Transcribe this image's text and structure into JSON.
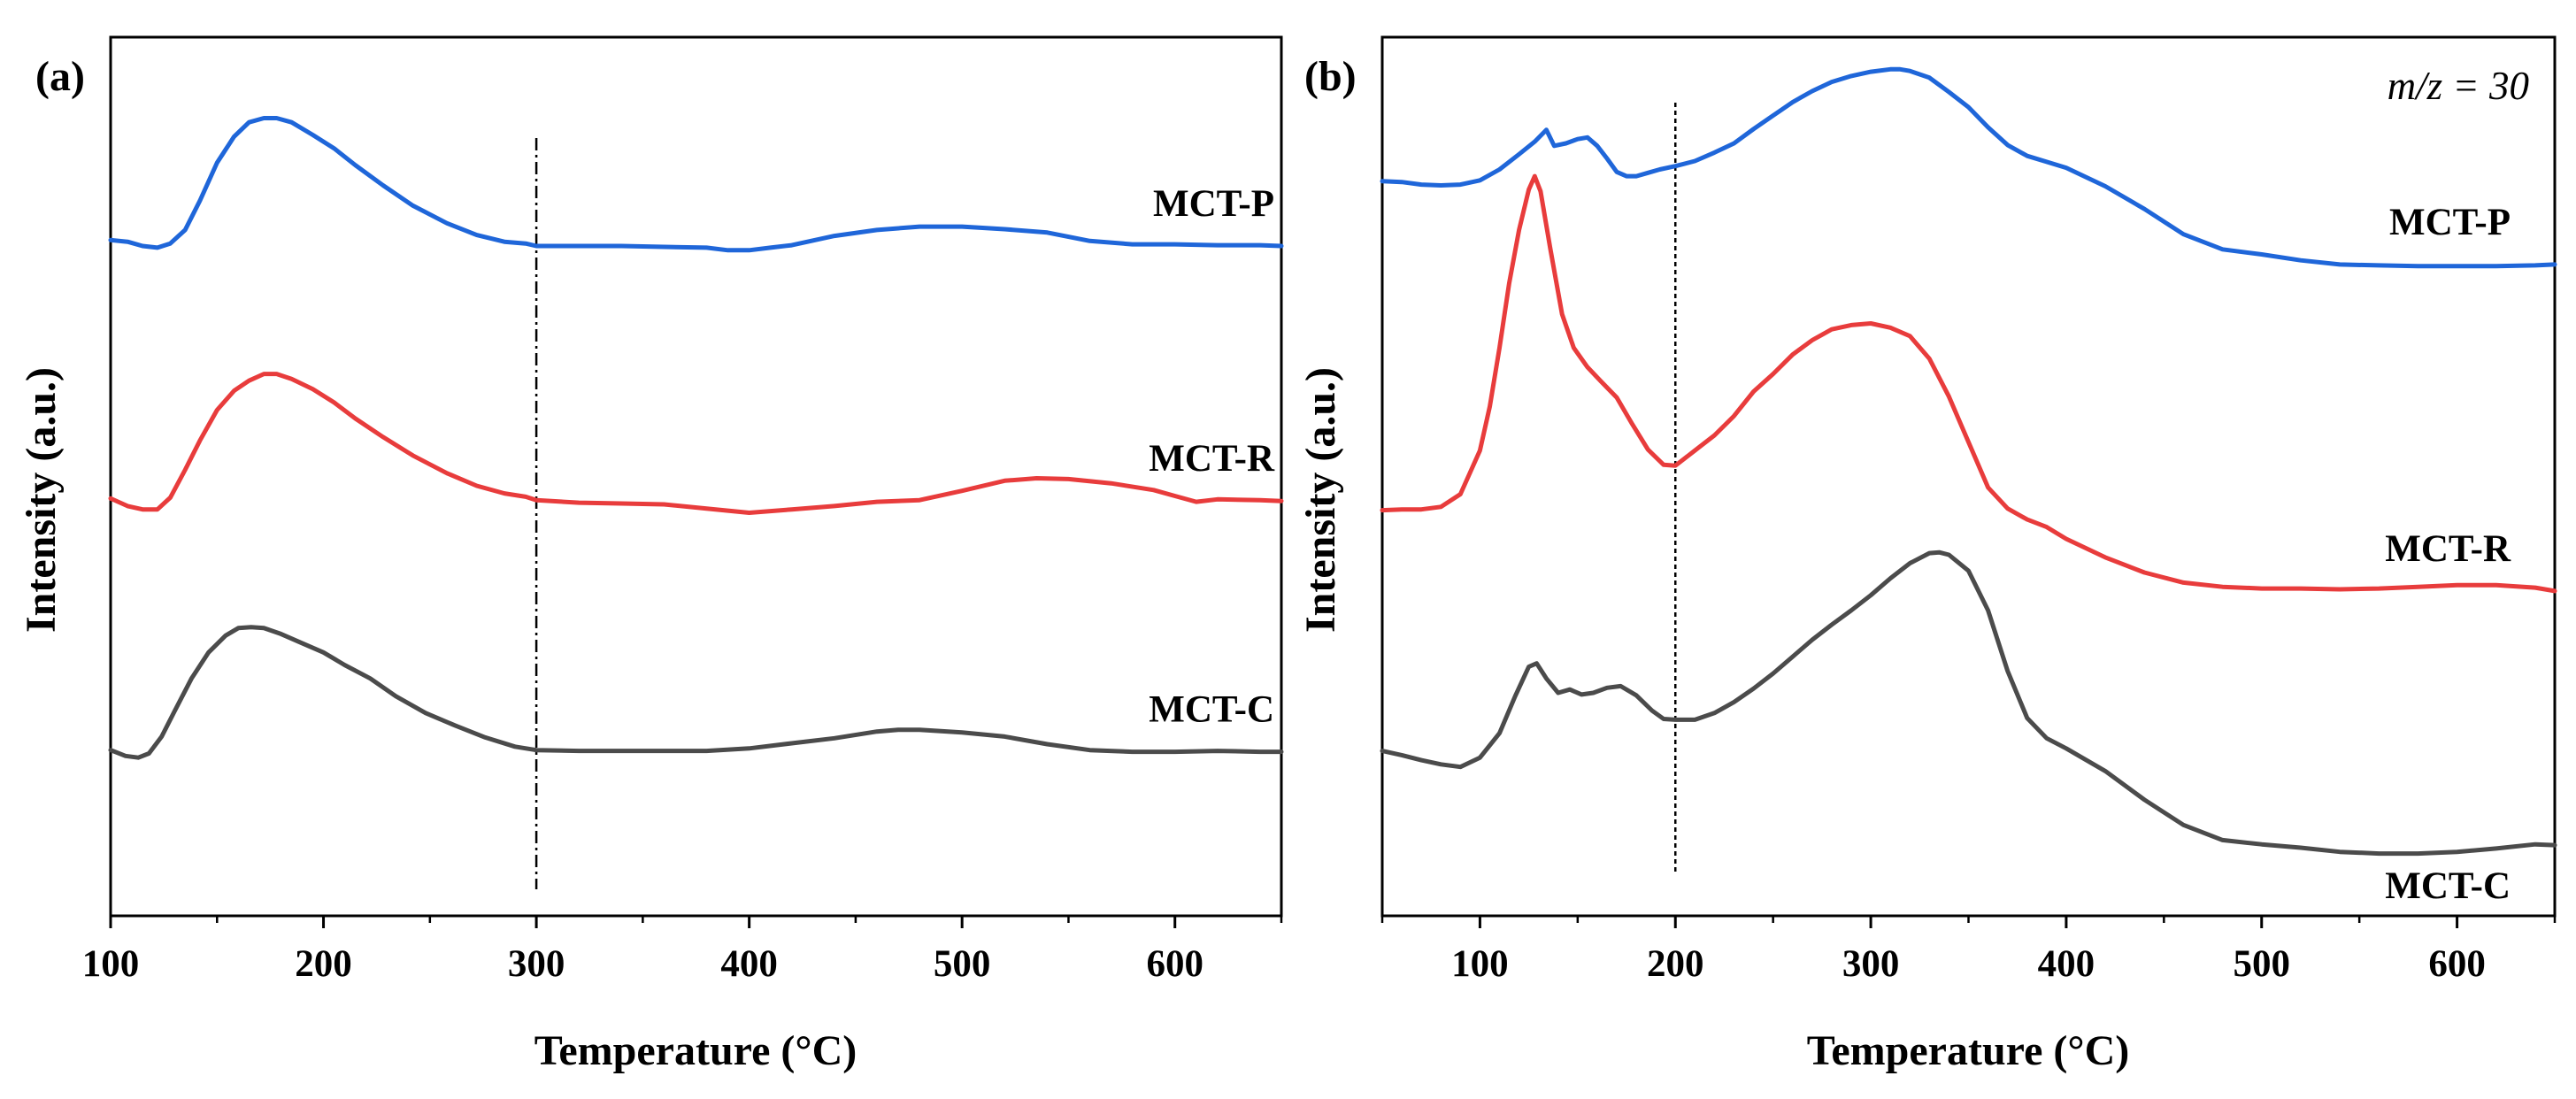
{
  "chart_data": [
    {
      "panel_label": "(a)",
      "type": "line",
      "xlabel": "Temperature (°C)",
      "ylabel": "Intensity (a.u.)",
      "xlim": [
        100,
        650
      ],
      "ylim": [
        0,
        100
      ],
      "xticks": [
        "100",
        "200",
        "300",
        "400",
        "500",
        "600"
      ],
      "xtick_values": [
        100,
        200,
        300,
        400,
        500,
        600
      ],
      "reference_line_x": 300,
      "annotation": "",
      "series": [
        {
          "name": "MCT-P",
          "color": "#1f66d9",
          "x": [
            100,
            108,
            115,
            122,
            128,
            135,
            142,
            150,
            158,
            165,
            172,
            178,
            185,
            195,
            205,
            215,
            228,
            242,
            258,
            272,
            285,
            295,
            300,
            320,
            340,
            360,
            380,
            390,
            400,
            410,
            420,
            440,
            460,
            480,
            500,
            520,
            540,
            560,
            580,
            600,
            620,
            640,
            650
          ],
          "values": [
            80.3,
            80.1,
            79.6,
            79.4,
            79.9,
            81.5,
            85,
            89.5,
            92.6,
            94.3,
            94.8,
            94.8,
            94.3,
            92.8,
            91.2,
            89.2,
            86.8,
            84.4,
            82.3,
            80.9,
            80.1,
            79.9,
            79.6,
            79.6,
            79.6,
            79.5,
            79.4,
            79.1,
            79.1,
            79.4,
            79.7,
            80.8,
            81.5,
            81.9,
            81.9,
            81.6,
            81.2,
            80.2,
            79.8,
            79.8,
            79.7,
            79.7,
            79.6
          ]
        },
        {
          "name": "MCT-R",
          "color": "#e83c3c",
          "x": [
            100,
            108,
            115,
            122,
            128,
            135,
            142,
            150,
            158,
            165,
            172,
            178,
            185,
            195,
            205,
            215,
            228,
            242,
            258,
            272,
            285,
            295,
            300,
            320,
            340,
            360,
            380,
            400,
            420,
            440,
            460,
            480,
            500,
            520,
            535,
            550,
            570,
            590,
            600,
            610,
            620,
            640,
            650
          ],
          "values": [
            49.6,
            48.7,
            48.3,
            48.3,
            49.7,
            53,
            56.5,
            60.1,
            62.4,
            63.6,
            64.4,
            64.4,
            63.8,
            62.6,
            61,
            59.1,
            56.9,
            54.7,
            52.6,
            51.1,
            50.2,
            49.8,
            49.4,
            49.1,
            49,
            48.9,
            48.4,
            47.9,
            48.3,
            48.7,
            49.2,
            49.4,
            50.5,
            51.7,
            52,
            51.9,
            51.4,
            50.6,
            49.9,
            49.2,
            49.5,
            49.4,
            49.3
          ]
        },
        {
          "name": "MCT-C",
          "color": "#4b4b4b",
          "x": [
            100,
            107,
            113,
            118,
            124,
            130,
            138,
            146,
            154,
            160,
            166,
            172,
            180,
            190,
            200,
            210,
            222,
            234,
            248,
            262,
            276,
            290,
            300,
            320,
            340,
            360,
            380,
            400,
            420,
            440,
            460,
            470,
            480,
            500,
            520,
            540,
            560,
            580,
            600,
            620,
            640,
            650
          ],
          "values": [
            19.7,
            19,
            18.8,
            19.3,
            21.3,
            24.3,
            28.2,
            31.3,
            33.3,
            34.2,
            34.3,
            34.2,
            33.5,
            32.4,
            31.3,
            29.8,
            28.2,
            26.1,
            24.1,
            22.6,
            21.2,
            20.1,
            19.7,
            19.6,
            19.6,
            19.6,
            19.6,
            19.9,
            20.5,
            21.1,
            21.9,
            22.1,
            22.1,
            21.8,
            21.3,
            20.4,
            19.7,
            19.5,
            19.5,
            19.6,
            19.5,
            19.5
          ]
        }
      ]
    },
    {
      "panel_label": "(b)",
      "type": "line",
      "xlabel": "Temperature (°C)",
      "ylabel": "Intensity (a.u.)",
      "xlim": [
        50,
        650
      ],
      "ylim": [
        0,
        100
      ],
      "xticks": [
        "100",
        "200",
        "300",
        "400",
        "500",
        "600"
      ],
      "xtick_values": [
        100,
        200,
        300,
        400,
        500,
        600
      ],
      "reference_line_x": 200,
      "annotation": "m/z = 30",
      "series": [
        {
          "name": "MCT-P",
          "color": "#1f66d9",
          "x": [
            50,
            60,
            70,
            80,
            90,
            100,
            110,
            120,
            128,
            134,
            138,
            144,
            150,
            155,
            160,
            165,
            170,
            175,
            180,
            186,
            192,
            200,
            210,
            220,
            230,
            240,
            250,
            260,
            270,
            280,
            290,
            300,
            310,
            315,
            320,
            330,
            340,
            350,
            360,
            370,
            380,
            390,
            400,
            420,
            440,
            460,
            480,
            500,
            520,
            540,
            560,
            580,
            600,
            620,
            640,
            650
          ],
          "values": [
            87.3,
            87.2,
            86.9,
            86.8,
            86.9,
            87.4,
            88.7,
            90.5,
            92,
            93.4,
            91.5,
            91.8,
            92.3,
            92.5,
            91.5,
            90,
            88.4,
            87.9,
            87.9,
            88.3,
            88.7,
            89.1,
            89.7,
            90.7,
            91.8,
            93.5,
            95.1,
            96.7,
            98,
            99.1,
            99.8,
            100.3,
            100.6,
            100.6,
            100.4,
            99.6,
            97.9,
            96.1,
            93.7,
            91.6,
            90.3,
            89.6,
            88.9,
            86.7,
            84,
            81,
            79.2,
            78.6,
            77.9,
            77.4,
            77.3,
            77.2,
            77.2,
            77.2,
            77.3,
            77.4
          ]
        },
        {
          "name": "MCT-R",
          "color": "#e83c3c",
          "x": [
            50,
            60,
            70,
            80,
            90,
            100,
            105,
            110,
            115,
            120,
            125,
            128,
            131,
            136,
            142,
            148,
            155,
            162,
            170,
            178,
            186,
            194,
            200,
            210,
            220,
            230,
            240,
            250,
            260,
            270,
            280,
            290,
            300,
            310,
            320,
            330,
            340,
            350,
            360,
            370,
            380,
            390,
            400,
            420,
            440,
            460,
            480,
            500,
            520,
            540,
            560,
            580,
            600,
            620,
            640,
            650
          ],
          "values": [
            48.2,
            48.3,
            48.3,
            48.6,
            50.1,
            55.3,
            60.5,
            67.5,
            75.2,
            81.5,
            86.3,
            87.9,
            86.1,
            79.3,
            71.5,
            67.5,
            65.2,
            63.5,
            61.6,
            58.4,
            55.4,
            53.6,
            53.5,
            55.3,
            57.1,
            59.4,
            62.3,
            64.4,
            66.7,
            68.4,
            69.7,
            70.2,
            70.4,
            69.9,
            68.9,
            66.2,
            61.7,
            56.3,
            50.9,
            48.4,
            47.1,
            46.2,
            44.8,
            42.6,
            40.8,
            39.6,
            39.1,
            38.9,
            38.9,
            38.8,
            38.9,
            39.1,
            39.3,
            39.3,
            39,
            38.6
          ]
        },
        {
          "name": "MCT-C",
          "color": "#4b4b4b",
          "x": [
            50,
            60,
            70,
            80,
            90,
            100,
            110,
            118,
            125,
            129,
            134,
            140,
            146,
            152,
            158,
            165,
            172,
            180,
            188,
            194,
            200,
            210,
            220,
            230,
            240,
            250,
            260,
            270,
            280,
            290,
            300,
            310,
            320,
            330,
            335,
            340,
            350,
            360,
            370,
            380,
            390,
            400,
            420,
            440,
            460,
            480,
            500,
            520,
            540,
            560,
            580,
            600,
            620,
            640,
            650
          ],
          "values": [
            19.6,
            19.1,
            18.5,
            18,
            17.7,
            18.8,
            21.7,
            26.1,
            29.6,
            30,
            28.2,
            26.5,
            26.9,
            26.3,
            26.5,
            27.1,
            27.3,
            26.2,
            24.4,
            23.4,
            23.3,
            23.3,
            24.1,
            25.4,
            27,
            28.8,
            30.8,
            32.8,
            34.6,
            36.3,
            38.1,
            40.1,
            41.9,
            43.1,
            43.2,
            42.9,
            41,
            36.3,
            29.1,
            23.5,
            21.1,
            19.9,
            17.2,
            13.8,
            10.8,
            9,
            8.5,
            8.1,
            7.6,
            7.4,
            7.4,
            7.6,
            8,
            8.5,
            8.4
          ]
        }
      ]
    }
  ]
}
